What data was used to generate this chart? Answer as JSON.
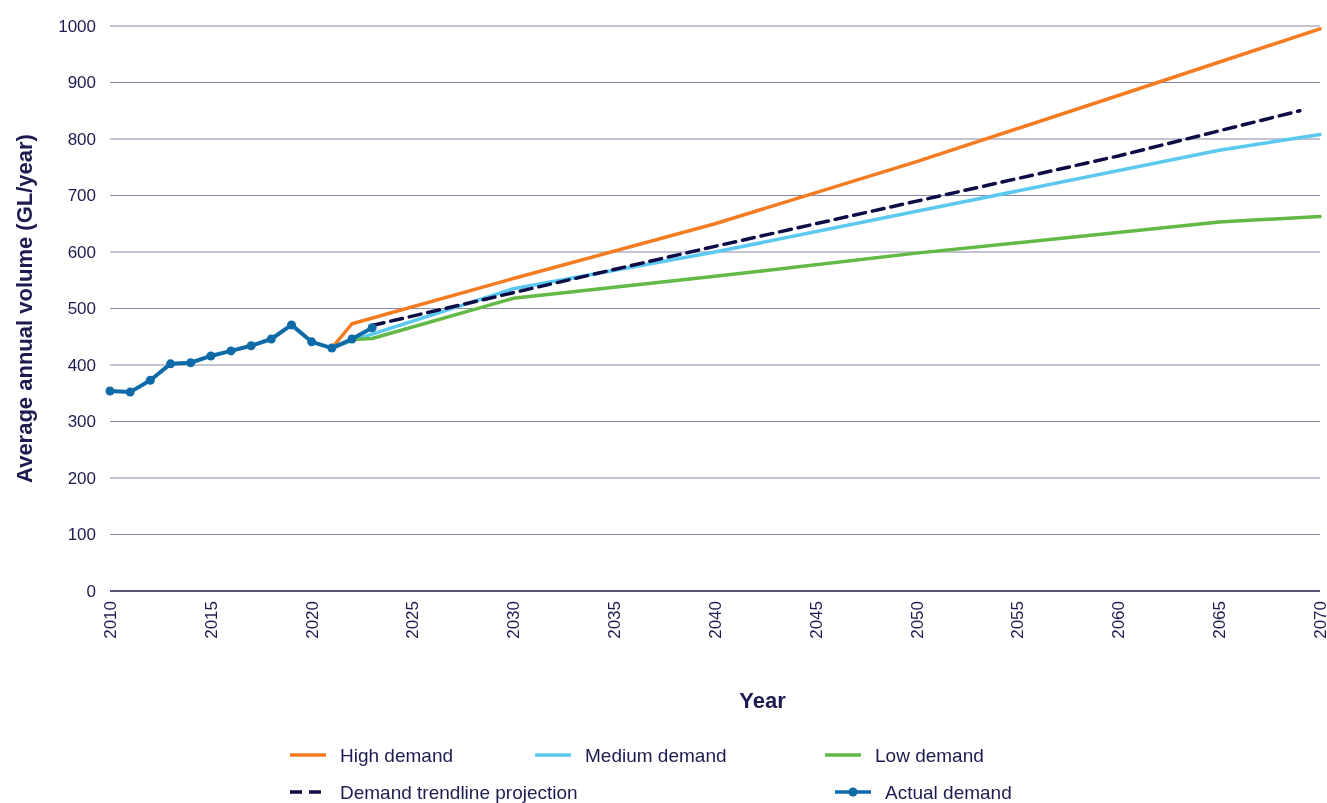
{
  "chart_data": {
    "type": "line",
    "xlabel": "Year",
    "ylabel": "Average annual volume (GL/year)",
    "xlim": [
      2010,
      2070
    ],
    "xticks": [
      2010,
      2015,
      2020,
      2025,
      2030,
      2035,
      2040,
      2045,
      2050,
      2055,
      2060,
      2065,
      2070
    ],
    "ylim": [
      0,
      1000
    ],
    "yticks": [
      0,
      100,
      200,
      300,
      400,
      500,
      600,
      700,
      800,
      900,
      1000
    ],
    "grid": "y",
    "legend": "bottom",
    "series": [
      {
        "name": "High demand",
        "color": "#f47b20",
        "x": [
          2021,
          2022,
          2030,
          2040,
          2050,
          2060,
          2070
        ],
        "values": [
          430,
          473,
          553,
          650,
          760,
          877,
          995
        ]
      },
      {
        "name": "Medium demand",
        "color": "#5bc8f0",
        "x": [
          2021,
          2022,
          2030,
          2040,
          2050,
          2065,
          2070
        ],
        "values": [
          430,
          443,
          535,
          600,
          672,
          780,
          808
        ]
      },
      {
        "name": "Low demand",
        "color": "#62b946",
        "x": [
          2021,
          2022,
          2023,
          2030,
          2040,
          2050,
          2065,
          2070
        ],
        "values": [
          430,
          445,
          447,
          518,
          557,
          598,
          653,
          663
        ]
      },
      {
        "name": "Demand trendline projection",
        "color": "#0d0c45",
        "line_style": "dashed",
        "x": [
          2023,
          2030,
          2040,
          2050,
          2060,
          2069
        ],
        "values": [
          470,
          528,
          610,
          690,
          770,
          850
        ]
      },
      {
        "name": "Actual demand",
        "color": "#0f6aa8",
        "marker": "circle",
        "x": [
          2010,
          2011,
          2012,
          2013,
          2014,
          2015,
          2016,
          2017,
          2018,
          2019,
          2020,
          2021,
          2022,
          2023
        ],
        "values": [
          354,
          352,
          373,
          402,
          404,
          416,
          425,
          434,
          446,
          471,
          441,
          430,
          446,
          466
        ]
      }
    ]
  }
}
